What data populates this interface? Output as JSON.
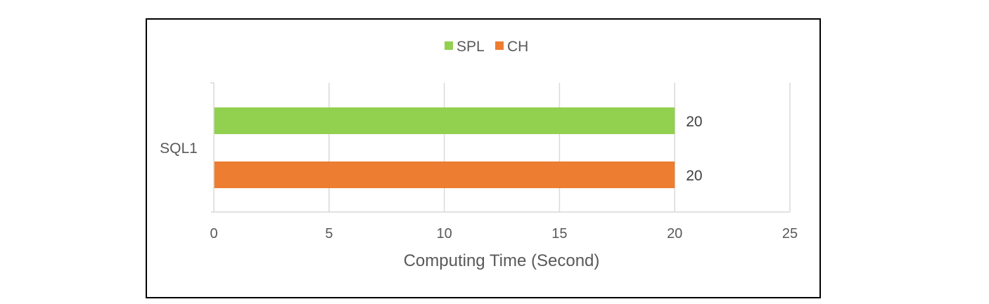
{
  "chart_data": {
    "type": "bar",
    "orientation": "horizontal",
    "categories": [
      "SQL1"
    ],
    "series": [
      {
        "name": "SPL",
        "values": [
          20
        ],
        "color": "#92D050"
      },
      {
        "name": "CH",
        "values": [
          20
        ],
        "color": "#ED7D31"
      }
    ],
    "xlabel": "Computing Time (Second)",
    "ylabel": "",
    "xlim": [
      0,
      25
    ],
    "x_ticks": [
      "0",
      "5",
      "10",
      "15",
      "20",
      "25"
    ],
    "data_labels": [
      "20",
      "20"
    ],
    "grid": true,
    "legend_position": "top-center"
  }
}
